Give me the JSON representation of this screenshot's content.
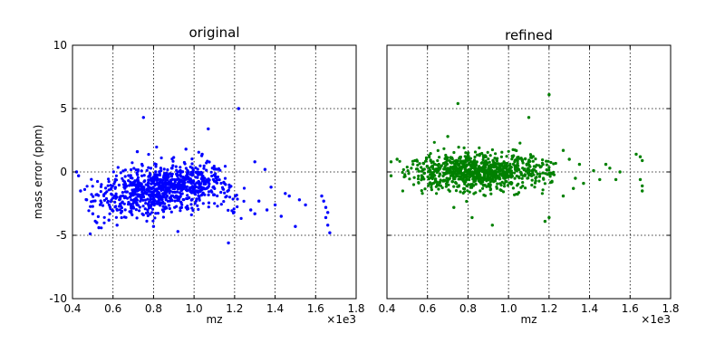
{
  "chart_data": [
    {
      "type": "scatter",
      "title": "original",
      "xlabel": "mz",
      "ylabel": "mass error (ppm)",
      "x_offset_label": "×1e3",
      "xlim": [
        0.4,
        1.8
      ],
      "ylim": [
        -10,
        10
      ],
      "xticks": [
        "0.4",
        "0.6",
        "0.8",
        "1.0",
        "1.2",
        "1.4",
        "1.6",
        "1.8"
      ],
      "yticks": [
        "10",
        "5",
        "0",
        "-5",
        "-10"
      ],
      "grid": true,
      "color": "#0000ff",
      "cluster": {
        "x_center": 0.85,
        "y_at_0_6": -2.0,
        "y_at_1_0": -1.0,
        "spread": 0.9
      },
      "points": [
        {
          "x": 0.75,
          "y": 4.3
        },
        {
          "x": 1.22,
          "y": 5.0
        },
        {
          "x": 1.07,
          "y": 3.4
        },
        {
          "x": 0.72,
          "y": 1.6
        },
        {
          "x": 0.96,
          "y": 1.8
        },
        {
          "x": 1.04,
          "y": 1.4
        },
        {
          "x": 1.3,
          "y": 0.8
        },
        {
          "x": 1.35,
          "y": 0.2
        },
        {
          "x": 0.42,
          "y": 0.0
        },
        {
          "x": 0.43,
          "y": -0.3
        },
        {
          "x": 0.44,
          "y": -1.5
        },
        {
          "x": 0.47,
          "y": -2.2
        },
        {
          "x": 0.5,
          "y": -3.3
        },
        {
          "x": 0.52,
          "y": -4.0
        },
        {
          "x": 0.53,
          "y": -4.4
        },
        {
          "x": 0.58,
          "y": -3.8
        },
        {
          "x": 0.62,
          "y": -4.2
        },
        {
          "x": 0.8,
          "y": -4.3
        },
        {
          "x": 0.92,
          "y": -4.7
        },
        {
          "x": 1.17,
          "y": -5.6
        },
        {
          "x": 1.28,
          "y": -3.0
        },
        {
          "x": 1.3,
          "y": -3.3
        },
        {
          "x": 1.32,
          "y": -2.3
        },
        {
          "x": 1.36,
          "y": -3.0
        },
        {
          "x": 1.38,
          "y": -1.2
        },
        {
          "x": 1.4,
          "y": -2.6
        },
        {
          "x": 1.43,
          "y": -3.5
        },
        {
          "x": 1.45,
          "y": -1.7
        },
        {
          "x": 1.47,
          "y": -1.9
        },
        {
          "x": 1.5,
          "y": -4.3
        },
        {
          "x": 1.52,
          "y": -2.2
        },
        {
          "x": 1.55,
          "y": -2.6
        },
        {
          "x": 1.63,
          "y": -1.9
        },
        {
          "x": 1.64,
          "y": -2.3
        },
        {
          "x": 1.65,
          "y": -2.8
        },
        {
          "x": 1.66,
          "y": -3.2
        },
        {
          "x": 1.66,
          "y": -4.2
        },
        {
          "x": 1.67,
          "y": -4.8
        },
        {
          "x": 1.65,
          "y": -3.6
        }
      ]
    },
    {
      "type": "scatter",
      "title": "refined",
      "xlabel": "mz",
      "ylabel": "",
      "x_offset_label": "×1e3",
      "xlim": [
        0.4,
        1.8
      ],
      "ylim": [
        -10,
        10
      ],
      "xticks": [
        "0.4",
        "0.6",
        "0.8",
        "1.0",
        "1.2",
        "1.4",
        "1.6",
        "1.8"
      ],
      "yticks": [],
      "grid": true,
      "color": "#008000",
      "cluster": {
        "x_center": 0.85,
        "y_at_0_6": 0.0,
        "y_at_1_0": 0.0,
        "spread": 0.7
      },
      "points": [
        {
          "x": 0.75,
          "y": 5.4
        },
        {
          "x": 1.2,
          "y": 6.1
        },
        {
          "x": 1.1,
          "y": 4.3
        },
        {
          "x": 0.7,
          "y": 2.8
        },
        {
          "x": 0.73,
          "y": -2.8
        },
        {
          "x": 0.82,
          "y": -3.6
        },
        {
          "x": 0.92,
          "y": -4.2
        },
        {
          "x": 1.18,
          "y": -3.9
        },
        {
          "x": 1.2,
          "y": -3.6
        },
        {
          "x": 0.42,
          "y": 0.8
        },
        {
          "x": 0.42,
          "y": -0.3
        },
        {
          "x": 0.45,
          "y": 1.0
        },
        {
          "x": 1.27,
          "y": 1.7
        },
        {
          "x": 1.3,
          "y": 1.0
        },
        {
          "x": 1.33,
          "y": -0.5
        },
        {
          "x": 1.35,
          "y": 0.6
        },
        {
          "x": 1.37,
          "y": -0.9
        },
        {
          "x": 1.42,
          "y": 0.1
        },
        {
          "x": 1.45,
          "y": -0.6
        },
        {
          "x": 1.48,
          "y": 0.6
        },
        {
          "x": 1.5,
          "y": 0.3
        },
        {
          "x": 1.53,
          "y": -0.6
        },
        {
          "x": 1.55,
          "y": 0.0
        },
        {
          "x": 1.63,
          "y": 1.4
        },
        {
          "x": 1.65,
          "y": 1.2
        },
        {
          "x": 1.66,
          "y": 0.9
        },
        {
          "x": 1.65,
          "y": -0.6
        },
        {
          "x": 1.66,
          "y": -1.1
        },
        {
          "x": 1.66,
          "y": -1.5
        },
        {
          "x": 1.27,
          "y": -1.9
        },
        {
          "x": 1.32,
          "y": -1.3
        }
      ]
    }
  ]
}
